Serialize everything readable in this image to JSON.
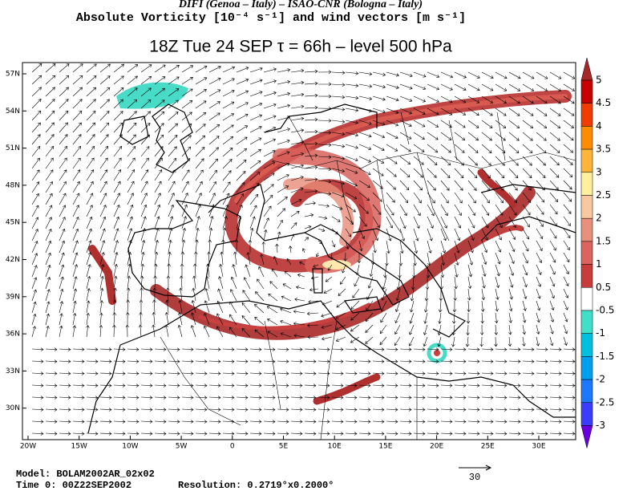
{
  "header": {
    "line1": "DIFI (Genoa – Italy)  –  ISAO-CNR (Bologna – Italy)",
    "line2": "Absolute Vorticity [10⁻⁴ s⁻¹] and wind vectors [m s⁻¹]",
    "line3": "18Z Tue 24 SEP  τ = 66h  –  level 500 hPa"
  },
  "map": {
    "lat_labels": [
      "57N",
      "54N",
      "51N",
      "48N",
      "45N",
      "42N",
      "39N",
      "36N",
      "33N",
      "30N"
    ],
    "lon_labels": [
      "20W",
      "15W",
      "10W",
      "5W",
      "0",
      "5E",
      "10E",
      "15E",
      "20E",
      "25E",
      "30E"
    ]
  },
  "colorbar": {
    "labels": [
      "5",
      "4.5",
      "4",
      "3.5",
      "3",
      "2.5",
      "2",
      "1.5",
      "1",
      "0.5",
      "-0.5",
      "-1",
      "-1.5",
      "-2",
      "-2.5",
      "-3"
    ]
  },
  "footer": {
    "model": "Model: BOLAM2002AR_02x02",
    "time": "Time 0: 00Z22SEP2002",
    "resolution": "Resolution: 0.2719°x0.2000°",
    "vector_scale": "30"
  }
}
